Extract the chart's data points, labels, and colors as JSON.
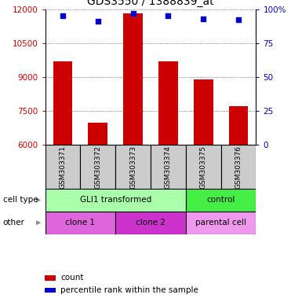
{
  "title": "GDS3550 / 1388839_at",
  "samples": [
    "GSM303371",
    "GSM303372",
    "GSM303373",
    "GSM303374",
    "GSM303375",
    "GSM303376"
  ],
  "counts": [
    9700,
    7000,
    11800,
    9700,
    8900,
    7700
  ],
  "percentile_ranks": [
    95,
    91,
    97,
    95,
    93,
    92
  ],
  "ylim_left": [
    6000,
    12000
  ],
  "yticks_left": [
    6000,
    7500,
    9000,
    10500,
    12000
  ],
  "ytick_labels_left": [
    "6000",
    "7500",
    "9000",
    "10500",
    "12000"
  ],
  "ylim_right": [
    0,
    100
  ],
  "yticks_right": [
    0,
    25,
    50,
    75,
    100
  ],
  "ytick_labels_right": [
    "0",
    "25",
    "50",
    "75",
    "100%"
  ],
  "bar_color": "#cc0000",
  "dot_color": "#0000cc",
  "bar_bottom": 6000,
  "cell_type_groups": [
    {
      "label": "GLI1 transformed",
      "start": 0,
      "end": 4,
      "color": "#aaffaa"
    },
    {
      "label": "control",
      "start": 4,
      "end": 6,
      "color": "#44ee44"
    }
  ],
  "other_groups": [
    {
      "label": "clone 1",
      "start": 0,
      "end": 2,
      "color": "#dd66dd"
    },
    {
      "label": "clone 2",
      "start": 2,
      "end": 4,
      "color": "#cc33cc"
    },
    {
      "label": "parental cell",
      "start": 4,
      "end": 6,
      "color": "#ee99ee"
    }
  ],
  "cell_type_label": "cell type",
  "other_label": "other",
  "legend_count_label": "count",
  "legend_percentile_label": "percentile rank within the sample",
  "grid_linestyle": "dotted",
  "grid_color": "#555555",
  "bg_color": "#ffffff",
  "sample_bg_color": "#cccccc",
  "left_tick_color": "#cc0000",
  "right_tick_color": "#0000cc",
  "bar_width": 0.55
}
